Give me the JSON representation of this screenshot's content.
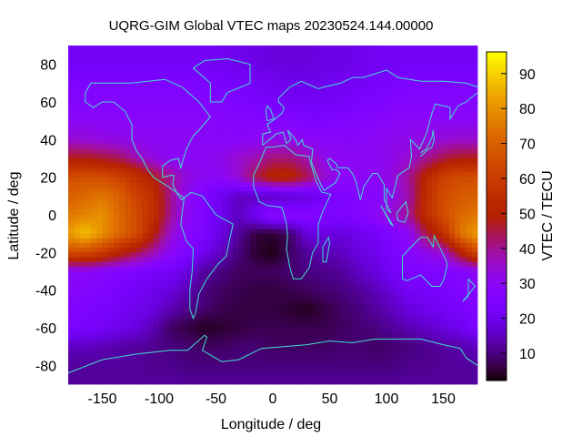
{
  "chart_data": {
    "type": "heatmap",
    "title": "UQRG-GIM Global VTEC maps 20230524.144.00000",
    "xlabel": "Longitude / deg",
    "ylabel": "Latitude / deg",
    "colorbar_label": "VTEC / TECU",
    "xlim": [
      -180,
      180
    ],
    "ylim": [
      -90,
      90
    ],
    "cbrange": [
      2.2,
      96.2
    ],
    "xticks": [
      "-150",
      "-100",
      "-50",
      "0",
      "50",
      "100",
      "150"
    ],
    "xtick_values": [
      -150,
      -100,
      -50,
      0,
      50,
      100,
      150
    ],
    "yticks": [
      "-80",
      "-60",
      "-40",
      "-20",
      "0",
      "20",
      "40",
      "60",
      "80"
    ],
    "ytick_values": [
      -80,
      -60,
      -40,
      -20,
      0,
      20,
      40,
      60,
      80
    ],
    "cbticks": [
      "10",
      "20",
      "30",
      "40",
      "50",
      "60",
      "70",
      "80",
      "90"
    ],
    "cbtick_values": [
      10,
      20,
      30,
      40,
      50,
      60,
      70,
      80,
      90
    ],
    "palette": "black-purple-red-orange-yellow",
    "coastline_color": "#40e0d0",
    "grid": false,
    "lon": [
      -180,
      -165,
      -150,
      -135,
      -120,
      -105,
      -90,
      -75,
      -60,
      -45,
      -30,
      -15,
      0,
      15,
      30,
      45,
      60,
      75,
      90,
      105,
      120,
      135,
      150,
      165,
      180
    ],
    "lat": [
      90,
      80,
      70,
      60,
      50,
      40,
      30,
      20,
      10,
      0,
      -10,
      -20,
      -30,
      -40,
      -50,
      -60,
      -70,
      -80,
      -90
    ],
    "values": [
      [
        22,
        22,
        22,
        22,
        22,
        22,
        22,
        22,
        22,
        21,
        20,
        19,
        18,
        18,
        18,
        19,
        19,
        20,
        21,
        22,
        22,
        22,
        22,
        22,
        22
      ],
      [
        22,
        22,
        22,
        22,
        22,
        22,
        22,
        22,
        22,
        21,
        20,
        19,
        18,
        18,
        18,
        19,
        19,
        20,
        21,
        22,
        22,
        22,
        22,
        22,
        22
      ],
      [
        25,
        25,
        25,
        25,
        25,
        25,
        25,
        25,
        24,
        24,
        23,
        22,
        21,
        20,
        20,
        20,
        21,
        22,
        23,
        24,
        25,
        25,
        25,
        25,
        25
      ],
      [
        27,
        27,
        27,
        27,
        27,
        27,
        27,
        27,
        27,
        26,
        25,
        24,
        23,
        22,
        22,
        22,
        23,
        24,
        25,
        26,
        27,
        27,
        27,
        27,
        27
      ],
      [
        30,
        30,
        29,
        29,
        29,
        29,
        29,
        29,
        29,
        28,
        27,
        27,
        27,
        26,
        25,
        25,
        26,
        27,
        28,
        29,
        30,
        30,
        30,
        30,
        30
      ],
      [
        35,
        34,
        33,
        32,
        31,
        30,
        30,
        30,
        29,
        29,
        29,
        30,
        32,
        32,
        30,
        29,
        29,
        29,
        30,
        31,
        32,
        33,
        34,
        35,
        35
      ],
      [
        48,
        48,
        46,
        44,
        38,
        33,
        30,
        30,
        30,
        32,
        35,
        38,
        42,
        42,
        38,
        32,
        30,
        30,
        30,
        32,
        35,
        40,
        45,
        48,
        48
      ],
      [
        65,
        66,
        65,
        62,
        56,
        48,
        40,
        33,
        30,
        30,
        35,
        45,
        52,
        52,
        45,
        35,
        30,
        30,
        30,
        33,
        40,
        52,
        62,
        65,
        65
      ],
      [
        70,
        72,
        75,
        70,
        62,
        55,
        40,
        30,
        25,
        20,
        15,
        15,
        15,
        16,
        18,
        22,
        25,
        27,
        28,
        32,
        38,
        55,
        65,
        68,
        70
      ],
      [
        75,
        78,
        80,
        72,
        65,
        55,
        40,
        30,
        25,
        20,
        15,
        22,
        30,
        28,
        28,
        26,
        25,
        27,
        30,
        35,
        40,
        55,
        65,
        72,
        75
      ],
      [
        82,
        88,
        80,
        72,
        65,
        50,
        35,
        28,
        25,
        18,
        12,
        6,
        5,
        8,
        18,
        18,
        18,
        20,
        22,
        26,
        30,
        45,
        55,
        75,
        82
      ],
      [
        65,
        65,
        60,
        52,
        45,
        38,
        30,
        25,
        20,
        15,
        10,
        5,
        3,
        8,
        12,
        14,
        15,
        18,
        20,
        24,
        28,
        32,
        35,
        50,
        65
      ],
      [
        30,
        30,
        28,
        26,
        25,
        23,
        22,
        18,
        12,
        10,
        8,
        8,
        8,
        9,
        10,
        11,
        12,
        15,
        18,
        22,
        25,
        25,
        25,
        27,
        30
      ],
      [
        28,
        27,
        26,
        24,
        22,
        20,
        18,
        14,
        10,
        8,
        7,
        6,
        6,
        7,
        8,
        9,
        10,
        12,
        14,
        18,
        22,
        23,
        24,
        26,
        28
      ],
      [
        26,
        25,
        24,
        22,
        20,
        18,
        14,
        11,
        9,
        7,
        6,
        6,
        6,
        5,
        4,
        6,
        8,
        10,
        12,
        15,
        18,
        20,
        22,
        24,
        26
      ],
      [
        25,
        24,
        22,
        20,
        18,
        14,
        8,
        6,
        4,
        5,
        6,
        7,
        7,
        7,
        7,
        7,
        8,
        9,
        10,
        12,
        14,
        16,
        18,
        20,
        25
      ],
      [
        15,
        15,
        14,
        13,
        12,
        11,
        10,
        9,
        8,
        8,
        9,
        9,
        8,
        8,
        8,
        8,
        9,
        9,
        8,
        9,
        10,
        11,
        12,
        13,
        15
      ],
      [
        12,
        12,
        12,
        12,
        12,
        11,
        11,
        10,
        10,
        10,
        10,
        10,
        10,
        10,
        10,
        10,
        10,
        10,
        10,
        10,
        11,
        11,
        12,
        12,
        12
      ],
      [
        12,
        12,
        12,
        12,
        12,
        12,
        12,
        12,
        12,
        12,
        12,
        12,
        12,
        12,
        12,
        12,
        12,
        12,
        12,
        12,
        12,
        12,
        12,
        12,
        12
      ]
    ]
  }
}
